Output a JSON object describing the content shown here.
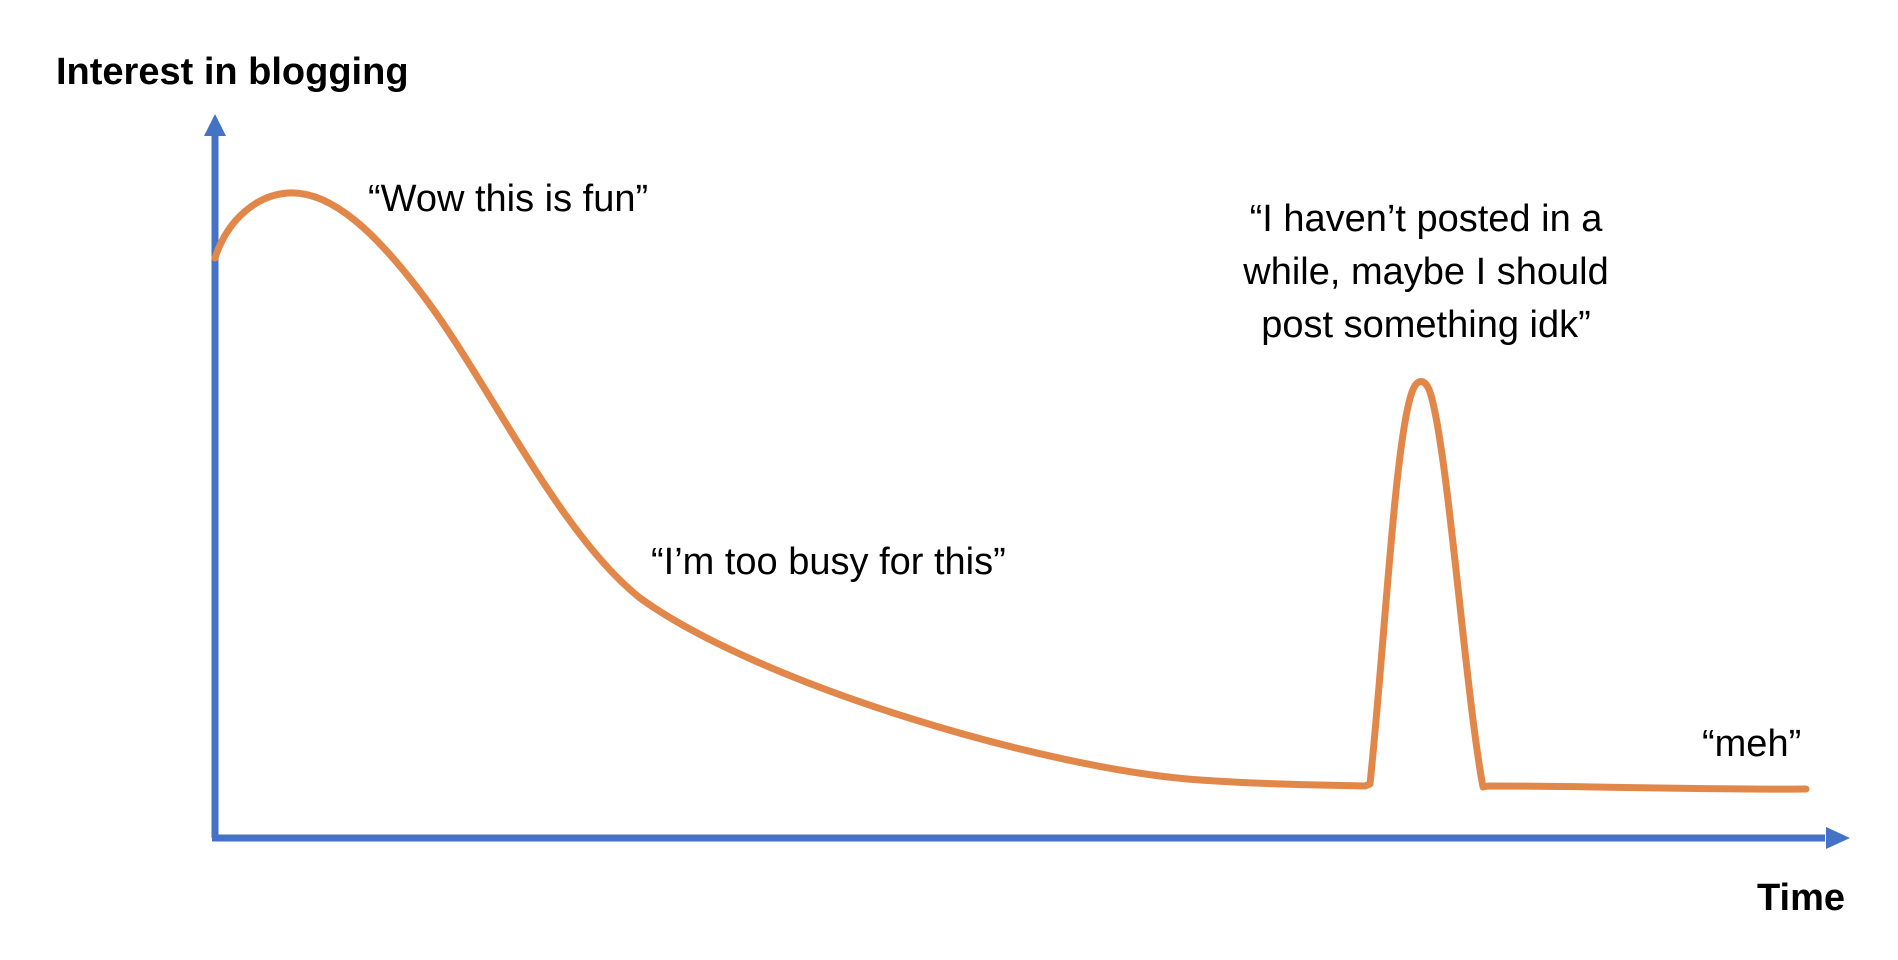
{
  "diagram": {
    "y_axis_label": "Interest in blogging",
    "x_axis_label": "Time",
    "annotations": {
      "wow": "“Wow this is fun”",
      "busy": "“I’m too busy for this”",
      "posted_line1": "“I haven’t posted in a",
      "posted_line2": "while, maybe I should",
      "posted_line3": "post something idk”",
      "meh": "“meh”"
    },
    "colors": {
      "axis": "#4472C4",
      "curve": "#E2874A",
      "text": "#000000"
    }
  }
}
